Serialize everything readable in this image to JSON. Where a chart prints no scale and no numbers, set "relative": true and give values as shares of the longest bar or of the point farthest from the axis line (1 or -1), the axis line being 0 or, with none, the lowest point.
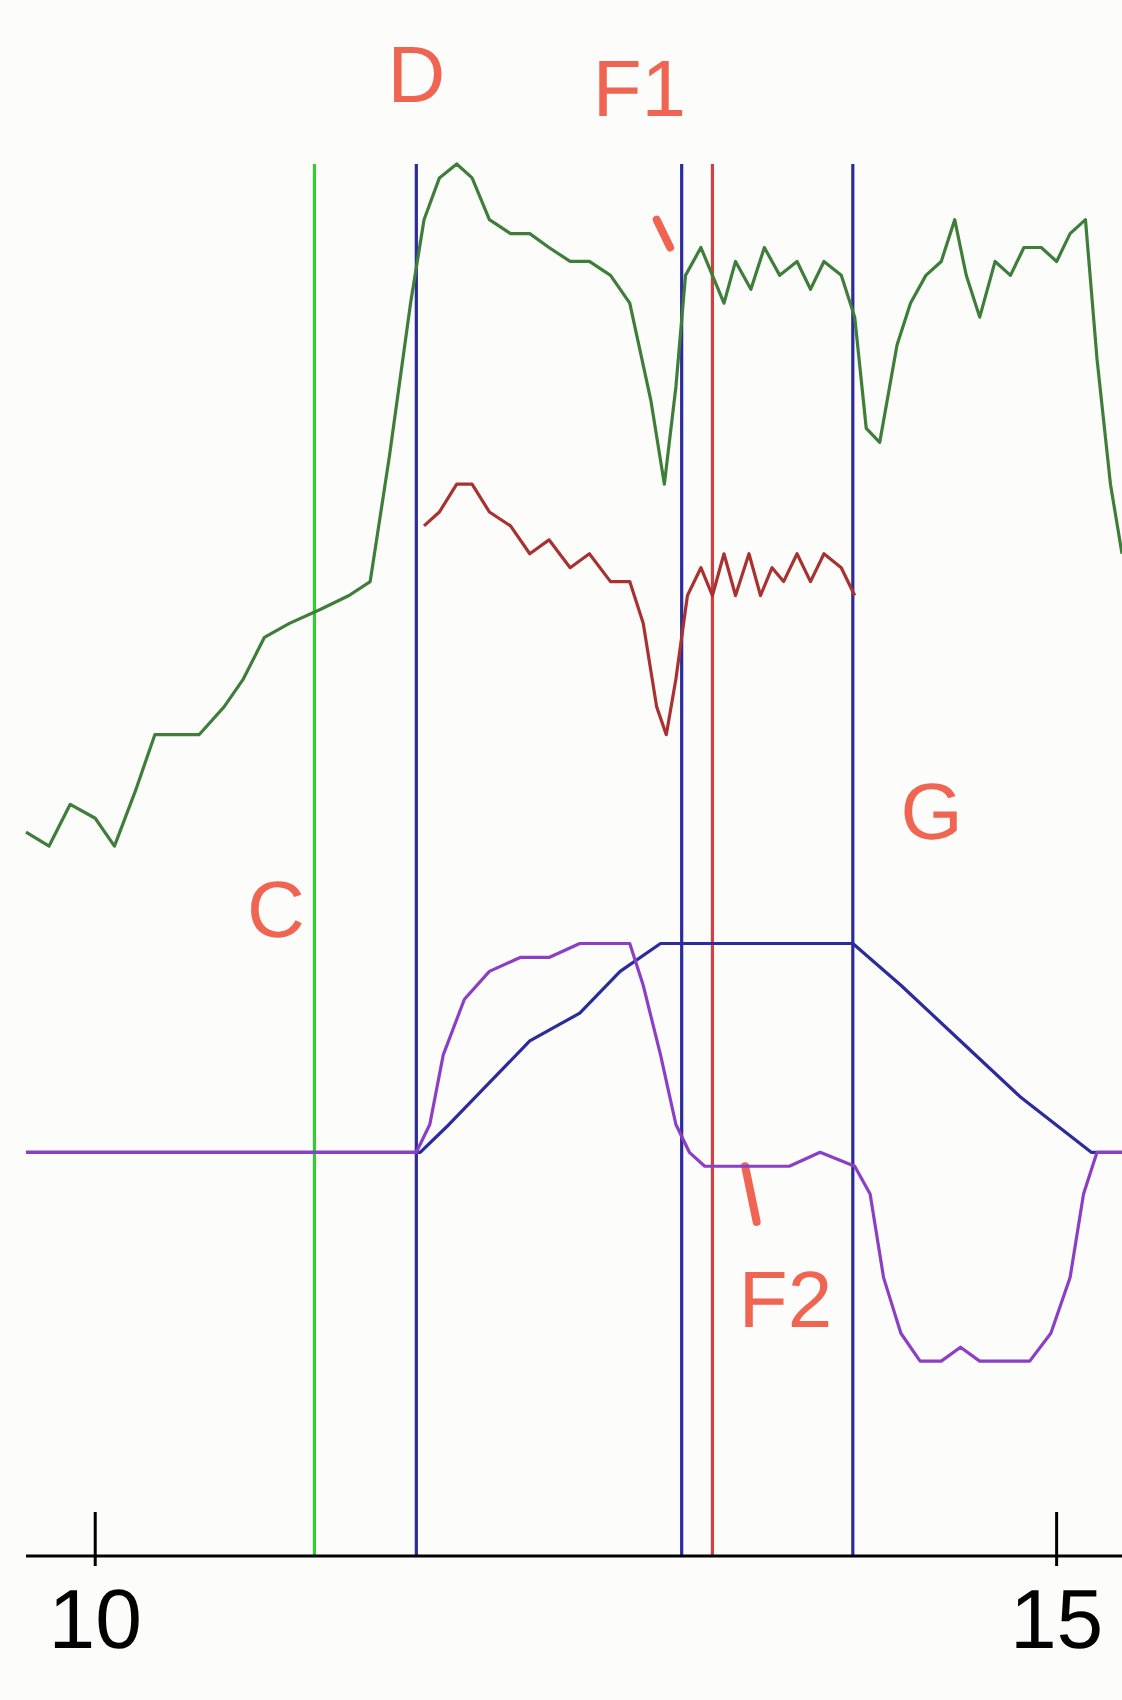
{
  "chart_data": {
    "type": "line",
    "relative": true,
    "xlim": [
      9.64,
      15.34
    ],
    "xticks": [
      10,
      15
    ],
    "tick_labels": "x",
    "grid": false,
    "marker": "none",
    "line_style": "solid",
    "series": [
      {
        "color": "#3f7d3a",
        "x": [
          9.64,
          9.76,
          9.87,
          10,
          10.1,
          10.21,
          10.31,
          10.44,
          10.54,
          10.67,
          10.77,
          10.88,
          11.01,
          11.17,
          11.32,
          11.43,
          11.53,
          11.64,
          11.71,
          11.79,
          11.88,
          11.96,
          12.05,
          12.16,
          12.26,
          12.36,
          12.47,
          12.57,
          12.68,
          12.78,
          12.89,
          12.96,
          13.02,
          13.07,
          13.15,
          13.21,
          13.27,
          13.33,
          13.41,
          13.48,
          13.56,
          13.65,
          13.72,
          13.79,
          13.88,
          13.95,
          14.01,
          14.08,
          14.17,
          14.24,
          14.32,
          14.4,
          14.47,
          14.53,
          14.6,
          14.68,
          14.76,
          14.83,
          14.92,
          15,
          15.07,
          15.15,
          15.21,
          15.28,
          15.34
        ],
        "values": [
          0.52,
          0.51,
          0.54,
          0.53,
          0.51,
          0.55,
          0.59,
          0.59,
          0.59,
          0.61,
          0.63,
          0.66,
          0.67,
          0.68,
          0.69,
          0.7,
          0.79,
          0.9,
          0.96,
          0.99,
          1,
          0.99,
          0.96,
          0.95,
          0.95,
          0.94,
          0.93,
          0.93,
          0.92,
          0.9,
          0.83,
          0.77,
          0.84,
          0.92,
          0.94,
          0.92,
          0.9,
          0.93,
          0.91,
          0.94,
          0.92,
          0.93,
          0.91,
          0.93,
          0.92,
          0.89,
          0.81,
          0.8,
          0.87,
          0.9,
          0.92,
          0.93,
          0.96,
          0.92,
          0.89,
          0.93,
          0.92,
          0.94,
          0.94,
          0.93,
          0.95,
          0.96,
          0.86,
          0.77,
          0.72
        ]
      },
      {
        "color": "#a83232",
        "x": [
          11.71,
          11.79,
          11.88,
          11.96,
          12.05,
          12.16,
          12.26,
          12.36,
          12.47,
          12.57,
          12.68,
          12.78,
          12.85,
          12.92,
          12.97,
          13.02,
          13.08,
          13.15,
          13.21,
          13.27,
          13.33,
          13.4,
          13.46,
          13.52,
          13.58,
          13.65,
          13.72,
          13.79,
          13.88,
          13.95
        ],
        "values": [
          0.74,
          0.75,
          0.77,
          0.77,
          0.75,
          0.74,
          0.72,
          0.73,
          0.71,
          0.72,
          0.7,
          0.7,
          0.67,
          0.61,
          0.59,
          0.63,
          0.69,
          0.71,
          0.69,
          0.72,
          0.69,
          0.72,
          0.69,
          0.71,
          0.7,
          0.72,
          0.7,
          0.72,
          0.71,
          0.69
        ]
      },
      {
        "color": "#8a3fc4",
        "x": [
          9.64,
          10.54,
          11.53,
          11.67,
          11.74,
          11.81,
          11.92,
          12.05,
          12.21,
          12.36,
          12.52,
          12.68,
          12.78,
          12.85,
          12.94,
          13.02,
          13.09,
          13.17,
          13.25,
          13.35,
          13.46,
          13.61,
          13.77,
          13.95,
          14.03,
          14.1,
          14.19,
          14.29,
          14.4,
          14.5,
          14.6,
          14.71,
          14.86,
          14.97,
          15.07,
          15.14,
          15.21,
          15.34
        ],
        "values": [
          0.29,
          0.29,
          0.29,
          0.29,
          0.31,
          0.36,
          0.4,
          0.42,
          0.43,
          0.43,
          0.44,
          0.44,
          0.44,
          0.41,
          0.36,
          0.31,
          0.29,
          0.28,
          0.28,
          0.28,
          0.28,
          0.28,
          0.29,
          0.28,
          0.26,
          0.2,
          0.16,
          0.14,
          0.14,
          0.15,
          0.14,
          0.14,
          0.14,
          0.16,
          0.2,
          0.26,
          0.29,
          0.29
        ]
      },
      {
        "color": "#2b2b9c",
        "x": [
          9.64,
          11.53,
          11.69,
          11.84,
          12.05,
          12.26,
          12.52,
          12.73,
          12.94,
          13.94,
          14.19,
          14.5,
          14.81,
          15.18,
          15.34
        ],
        "values": [
          0.29,
          0.29,
          0.29,
          0.31,
          0.34,
          0.37,
          0.39,
          0.42,
          0.44,
          0.44,
          0.41,
          0.37,
          0.33,
          0.29,
          0.29
        ]
      }
    ],
    "ref_lines": [
      {
        "axis": "x",
        "value": 11.14,
        "color": "#33cc33",
        "label": "C"
      },
      {
        "axis": "x",
        "value": 11.67,
        "color": "#2b2b9c",
        "label": "D"
      },
      {
        "axis": "x",
        "value": 13.05,
        "color": "#2b2b9c",
        "label": "F1"
      },
      {
        "axis": "x",
        "value": 13.21,
        "color": "#d04040",
        "label": "F2"
      },
      {
        "axis": "x",
        "value": 13.94,
        "color": "#2b2b9c",
        "label": "G"
      }
    ]
  }
}
